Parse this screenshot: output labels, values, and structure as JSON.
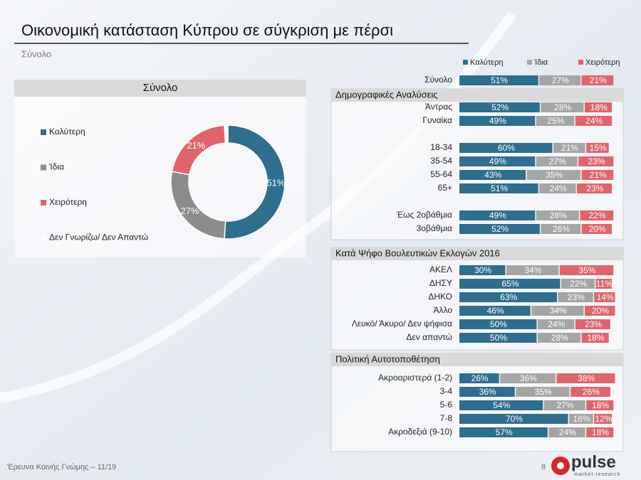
{
  "title": "Οικονομική κατάσταση Κύπρου σε σύγκριση με πέρσι",
  "subtitle": "Σύνολο",
  "footer": {
    "source": "Έρευνα Κοινής Γνώμης – 11/19",
    "page": "8",
    "logo": "pulse",
    "logo_tagline": "market research"
  },
  "chart_data": [
    {
      "type": "pie",
      "donut": true,
      "title": "Σύνολο",
      "categories": [
        "Καλύτερη",
        "Ίδια",
        "Χειρότερη",
        "Δεν Γνωρίζω/ Δεν Απαντώ"
      ],
      "values": [
        51,
        27,
        21,
        1
      ],
      "value_labels": [
        "51%",
        "27%",
        "21%",
        null
      ],
      "colors": [
        "#2e6e8e",
        "#8c8c8c",
        "#e0646c",
        "#ffffff"
      ]
    },
    {
      "type": "stacked-bar",
      "orientation": "horizontal",
      "xlim": [
        0,
        100
      ],
      "series": [
        {
          "name": "Καλύτερη",
          "color": "#2e6e8e"
        },
        {
          "name": "Ίδια",
          "color": "#a5a5a5"
        },
        {
          "name": "Χειρότερη",
          "color": "#e0646c"
        }
      ],
      "groups": [
        {
          "categories": [
            "Σύνολο"
          ],
          "values": [
            [
              51,
              27,
              21
            ]
          ],
          "value_labels": [
            [
              "51%",
              "27%",
              "21%"
            ]
          ]
        },
        {
          "title": "Δημογραφικές Αναλύσεις",
          "categories": [
            "Άντρας",
            "Γυναίκα",
            null,
            "18-34",
            "35-54",
            "55-64",
            "65+",
            null,
            "Έως 2οβάθμια",
            "3οβάθμια"
          ],
          "values": [
            [
              52,
              28,
              18
            ],
            [
              49,
              25,
              24
            ],
            null,
            [
              60,
              21,
              15
            ],
            [
              49,
              27,
              23
            ],
            [
              43,
              35,
              21
            ],
            [
              51,
              24,
              23
            ],
            null,
            [
              49,
              28,
              22
            ],
            [
              52,
              26,
              20
            ]
          ],
          "value_labels": [
            [
              "52%",
              "28%",
              "18%"
            ],
            [
              "49%",
              "25%",
              "24%"
            ],
            null,
            [
              "60%",
              "21%",
              "15%"
            ],
            [
              "49%",
              "27%",
              "23%"
            ],
            [
              "43%",
              "35%",
              "21%"
            ],
            [
              "51%",
              "24%",
              "23%"
            ],
            null,
            [
              "49%",
              "28%",
              "22%"
            ],
            [
              "52%",
              "26%",
              "20%"
            ]
          ]
        },
        {
          "title": "Κατά Ψήφο Βουλευτικών Εκλογών 2016",
          "categories": [
            "ΑΚΕΛ",
            "ΔΗΣΥ",
            "ΔΗΚΟ",
            "Άλλο",
            "Λευκό/ Άκυρο/ Δεν ψήφισα",
            "Δεν απαντώ"
          ],
          "values": [
            [
              30,
              34,
              35
            ],
            [
              65,
              22,
              11
            ],
            [
              63,
              23,
              14
            ],
            [
              46,
              34,
              20
            ],
            [
              50,
              24,
              23
            ],
            [
              50,
              28,
              18
            ]
          ],
          "value_labels": [
            [
              "30%",
              "34%",
              "35%"
            ],
            [
              "65%",
              "22%",
              "11%"
            ],
            [
              "63%",
              "23%",
              "14%"
            ],
            [
              "46%",
              "34%",
              "20%"
            ],
            [
              "50%",
              "24%",
              "23%"
            ],
            [
              "50%",
              "28%",
              "18%"
            ]
          ]
        },
        {
          "title": "Πολιτική Αυτοτοποθέτηση",
          "categories": [
            "Ακροαριστερά (1-2)",
            "3-4",
            "5-6",
            "7-8",
            "Ακροδεξιά (9-10)"
          ],
          "values": [
            [
              26,
              36,
              38
            ],
            [
              36,
              35,
              26
            ],
            [
              54,
              27,
              18
            ],
            [
              70,
              16,
              12
            ],
            [
              57,
              24,
              18
            ]
          ],
          "value_labels": [
            [
              "26%",
              "36%",
              "38%"
            ],
            [
              "36%",
              "35%",
              "26%"
            ],
            [
              "54%",
              "27%",
              "18%"
            ],
            [
              "70%",
              "16%",
              "12%"
            ],
            [
              "57%",
              "24%",
              "18%"
            ]
          ]
        }
      ]
    }
  ]
}
